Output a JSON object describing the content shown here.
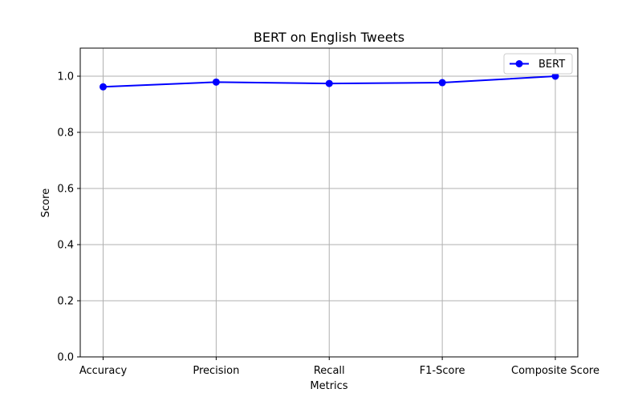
{
  "chart_data": {
    "type": "line",
    "title": "BERT on English Tweets",
    "xlabel": "Metrics",
    "ylabel": "Score",
    "categories": [
      "Accuracy",
      "Precision",
      "Recall",
      "F1-Score",
      "Composite Score"
    ],
    "series": [
      {
        "name": "BERT",
        "values": [
          0.962,
          0.979,
          0.974,
          0.977,
          1.0
        ],
        "color": "#0000ff",
        "marker": "circle"
      }
    ],
    "ylim": [
      0,
      1.1
    ],
    "yticks": [
      0.0,
      0.2,
      0.4,
      0.6,
      0.8,
      1.0
    ],
    "ytick_labels": [
      "0.0",
      "0.2",
      "0.4",
      "0.6",
      "0.8",
      "1.0"
    ],
    "grid": true,
    "legend_position": "top-right"
  },
  "colors": {
    "grid": "#b0b0b0",
    "axis": "#000000",
    "series": "#0000ff"
  }
}
